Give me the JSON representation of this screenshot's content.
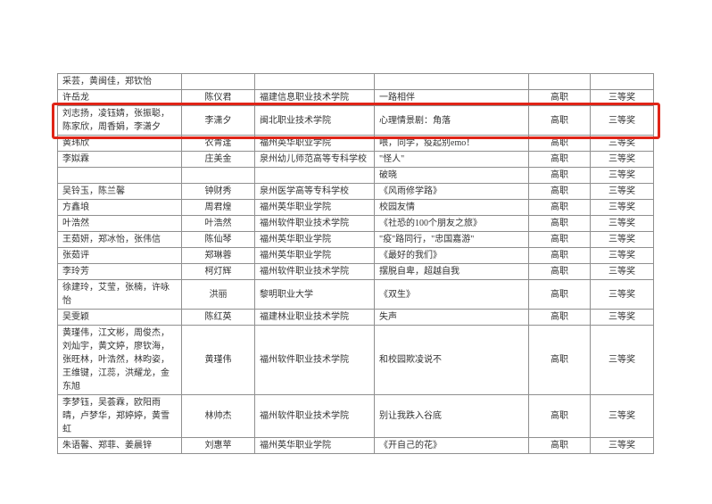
{
  "table": {
    "columns": [
      {
        "key": "members",
        "align": "left",
        "name": "members-cell"
      },
      {
        "key": "teacher",
        "align": "center",
        "name": "teacher-cell"
      },
      {
        "key": "school",
        "align": "left",
        "name": "school-cell"
      },
      {
        "key": "work",
        "align": "left",
        "name": "work-title-cell"
      },
      {
        "key": "level",
        "align": "center",
        "name": "level-cell"
      },
      {
        "key": "award",
        "align": "center",
        "name": "award-cell"
      }
    ],
    "rows": [
      {
        "members": "采芸，黄闽佳，郑钦怡",
        "teacher": "",
        "school": "",
        "work": "",
        "level": "",
        "award": ""
      },
      {
        "members": "许岳龙",
        "teacher": "陈仪君",
        "school": "福建信息职业技术学院",
        "work": "一路相伴",
        "level": "高职",
        "award": "三等奖"
      },
      {
        "members": "刘志扬，凌钰婧，张振聪，陈家欣，周香娟，李潇夕",
        "teacher": "李潇夕",
        "school": "闽北职业技术学院",
        "work": "心理情景剧：角落",
        "level": "高职",
        "award": "三等奖",
        "highlighted": true
      },
      {
        "members": "黄玮欣",
        "teacher": "农青逢",
        "school": "福州英华职业学院",
        "work": "喂，同学，疫起别emo！",
        "level": "高职",
        "award": "三等奖"
      },
      {
        "members": "李姒霖",
        "teacher": "庄美金",
        "school": "泉州幼儿师范高等专科学校",
        "work": "\"怪人\"",
        "level": "高职",
        "award": "三等奖"
      },
      {
        "members": "",
        "teacher": "",
        "school": "",
        "work": "破晓",
        "level": "高职",
        "award": "三等奖"
      },
      {
        "members": "吴铃玉，陈兰馨",
        "teacher": "钟财秀",
        "school": "泉州医学高等专科学校",
        "work": "《风雨修学路》",
        "level": "高职",
        "award": "三等奖"
      },
      {
        "members": "方鑫埌",
        "teacher": "周君煌",
        "school": "福州英华职业学院",
        "work": "校园友情",
        "level": "高职",
        "award": "三等奖"
      },
      {
        "members": "叶浩然",
        "teacher": "叶浩然",
        "school": "福州软件职业技术学院",
        "work": "《社恐的100个朋友之旅》",
        "level": "高职",
        "award": "三等奖"
      },
      {
        "members": "王茹妍，郑冰怡，张伟信",
        "teacher": "陈仙琴",
        "school": "福州英华职业学院",
        "work": "\"疫\"路同行，\"忠国嘉游\"",
        "level": "高职",
        "award": "三等奖"
      },
      {
        "members": "张茹评",
        "teacher": "郑琳蓉",
        "school": "福州英华职业学院",
        "work": "《最好的我们》",
        "level": "高职",
        "award": "三等奖"
      },
      {
        "members": "李玲芳",
        "teacher": "柯灯辉",
        "school": "福州软件职业技术学院",
        "work": "摆脱自卑，超越自我",
        "level": "高职",
        "award": "三等奖"
      },
      {
        "members": "徐建玲，艾莹，张楠，许咏怡",
        "teacher": "洪丽",
        "school": "黎明职业大学",
        "work": "《双生》",
        "level": "高职",
        "award": "三等奖"
      },
      {
        "members": "吴雯颖",
        "teacher": "陈红英",
        "school": "福建林业职业技术学院",
        "work": "失声",
        "level": "高职",
        "award": "三等奖"
      },
      {
        "members": "黄瑾伟，江文彬，周俊杰，刘灿宇，黄文婷，廖钦海，张旺林，叶浩然，林昀姿，王维键，江蕊，洪耀龙，金东旭",
        "teacher": "黄瑾伟",
        "school": "福州软件职业技术学院",
        "work": "和校园欺凌说不",
        "level": "高职",
        "award": "三等奖"
      },
      {
        "members": "李梦钰，吴荟霖，欧阳雨晴，卢梦华，郑婷婷，黄雪虹",
        "teacher": "林帅杰",
        "school": "福州软件职业技术学院",
        "work": "别让我跌入谷底",
        "level": "高职",
        "award": "三等奖"
      },
      {
        "members": "朱语馨、郑菲、姜晨锌",
        "teacher": "刘惠苹",
        "school": "福州英华职业学院",
        "work": "《开自己的花》",
        "level": "高职",
        "award": "三等奖"
      }
    ]
  },
  "highlight_color": "#e02417"
}
